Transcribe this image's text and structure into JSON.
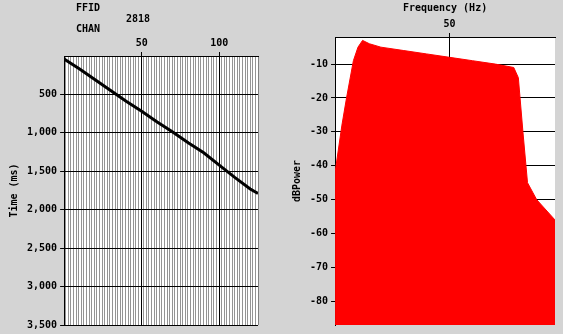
{
  "chart_data": [
    {
      "type": "line",
      "title": "FFID",
      "subtitle": "2818",
      "x_label": "CHAN",
      "y_label": "Time (ms)",
      "x": [
        0,
        10,
        20,
        30,
        40,
        50,
        60,
        70,
        80,
        90,
        100,
        110,
        120,
        125
      ],
      "values": [
        40,
        170,
        310,
        450,
        590,
        720,
        860,
        990,
        1130,
        1260,
        1420,
        1580,
        1730,
        1790
      ],
      "color": "#000000",
      "xlim": [
        0,
        125
      ],
      "xticks": [
        50,
        100
      ],
      "ylim": [
        3500,
        0
      ],
      "yticks": [
        500,
        1000,
        1500,
        2000,
        2500,
        3000,
        3500
      ],
      "grid": true
    },
    {
      "type": "area",
      "x_label": "Frequency (Hz)",
      "y_label": "dBPower",
      "x": [
        0,
        3,
        5,
        8,
        10,
        12,
        15,
        20,
        30,
        40,
        50,
        60,
        70,
        78,
        80,
        82,
        84,
        88,
        96
      ],
      "values": [
        -42,
        -28,
        -20,
        -9,
        -5,
        -3,
        -4,
        -5,
        -6,
        -7,
        -8,
        -9,
        -10,
        -11,
        -14,
        -30,
        -45,
        -50,
        -56
      ],
      "color": "#ff0000",
      "xlim": [
        0,
        96
      ],
      "xticks": [
        50
      ],
      "ylim": [
        -87,
        -2
      ],
      "yticks": [
        -80,
        -70,
        -60,
        -50,
        -40,
        -30,
        -20,
        -10
      ],
      "grid": true
    }
  ]
}
